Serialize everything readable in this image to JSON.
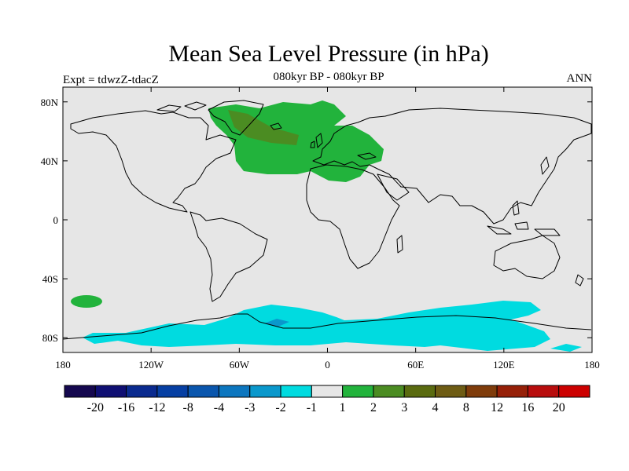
{
  "title": "Mean Sea Level Pressure (in hPa)",
  "subtitle": "080kyr BP - 080kyr BP",
  "left_label": "Expt = tdwzZ-tdacZ",
  "right_label": "ANN",
  "map": {
    "projection": "cylindrical equidistant",
    "lon_range": [
      -180,
      180
    ],
    "lat_range": [
      -90,
      90
    ],
    "land_fill": "#e6e6e6",
    "coast_color": "#000000"
  },
  "y_ticks": [
    "80N",
    "40N",
    "0",
    "40S",
    "80S"
  ],
  "x_ticks": [
    "180",
    "120W",
    "60W",
    "0",
    "60E",
    "120E",
    "180"
  ],
  "colorbar": {
    "colors": [
      "#15084f",
      "#0f0f73",
      "#0a2a8f",
      "#063fa3",
      "#0a56ad",
      "#0c76bf",
      "#0a98cc",
      "#00dbe0",
      "#e6e6e6",
      "#22b33c",
      "#4b8c22",
      "#5a6b10",
      "#6e5c14",
      "#7f3c0b",
      "#962008",
      "#b80d0d",
      "#cc0000"
    ],
    "labels": [
      "-20",
      "-16",
      "-12",
      "-8",
      "-4",
      "-3",
      "-2",
      "-1",
      "1",
      "2",
      "3",
      "4",
      "8",
      "12",
      "16",
      "20"
    ]
  }
}
